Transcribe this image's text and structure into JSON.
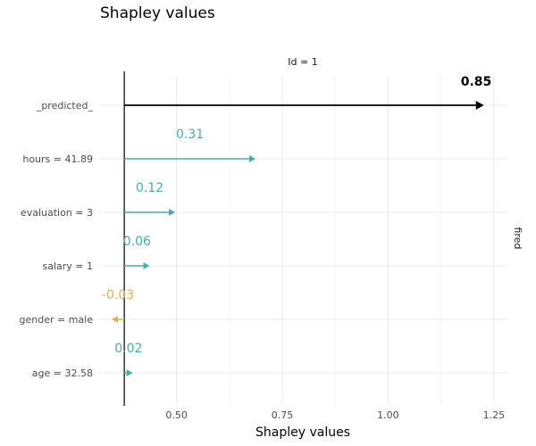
{
  "chart_data": {
    "type": "bar",
    "title": "Shapley values",
    "facet_label": "Id = 1",
    "side_label": "fired",
    "xlabel": "Shapley values",
    "xlim": [
      0.315,
      1.282
    ],
    "xticks": [
      0.5,
      0.75,
      1.0,
      1.25
    ],
    "xtick_labels": [
      "0.50",
      "0.75",
      "1.00",
      "1.25"
    ],
    "baseline": 0.3765,
    "colors": {
      "prediction": "#000000",
      "positive": "#4aada7",
      "negative": "#d9b25a"
    },
    "rows": [
      {
        "label": "_predicted_",
        "value": 0.85,
        "label_text": "0.85",
        "kind": "prediction"
      },
      {
        "label": "hours = 41.89",
        "value": 0.31,
        "label_text": "0.31",
        "kind": "positive"
      },
      {
        "label": "evaluation = 3",
        "value": 0.12,
        "label_text": "0.12",
        "kind": "positive"
      },
      {
        "label": "salary = 1",
        "value": 0.06,
        "label_text": "0.06",
        "kind": "positive"
      },
      {
        "label": "gender = male",
        "value": -0.03,
        "label_text": "-0.03",
        "kind": "negative"
      },
      {
        "label": "age = 32.58",
        "value": 0.02,
        "label_text": "0.02",
        "kind": "positive"
      }
    ]
  }
}
